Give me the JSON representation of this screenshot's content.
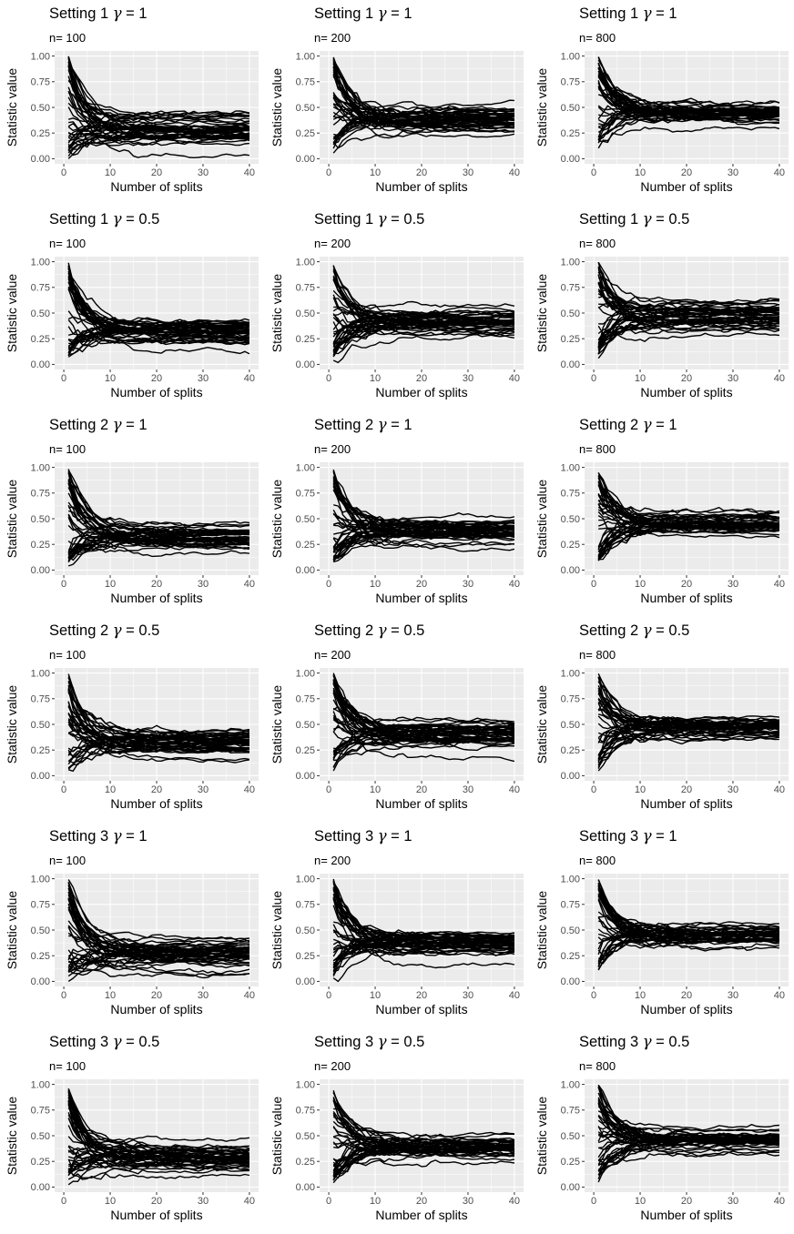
{
  "chart_data": {
    "type": "line",
    "xlabel": "Number of splits",
    "ylabel": "Statistic value",
    "xlim": [
      0,
      40
    ],
    "ylim": [
      0,
      1
    ],
    "x_ticks": [
      0,
      10,
      20,
      30,
      40
    ],
    "y_ticks": [
      0,
      0.25,
      0.5,
      0.75,
      1
    ],
    "x_tick_labels": [
      "0",
      "10",
      "20",
      "30",
      "40"
    ],
    "y_tick_labels": [
      "0.00",
      "0.25",
      "0.50",
      "0.75",
      "1.00"
    ],
    "line_color": "#000000",
    "panel_background": "#ebebeb",
    "grid_color": "#ffffff",
    "panels": [
      {
        "setting": "Setting 1",
        "gamma": "1",
        "n_label": "n= 100",
        "center": 0.3,
        "spread": 0.1,
        "low_outlier": 0.04
      },
      {
        "setting": "Setting 1",
        "gamma": "1",
        "n_label": "n= 200",
        "center": 0.4,
        "spread": 0.09,
        "low_outlier": 0.23
      },
      {
        "setting": "Setting 1",
        "gamma": "1",
        "n_label": "n= 800",
        "center": 0.45,
        "spread": 0.07,
        "low_outlier": 0.3
      },
      {
        "setting": "Setting 1",
        "gamma": "0.5",
        "n_label": "n= 100",
        "center": 0.32,
        "spread": 0.09,
        "low_outlier": 0.13
      },
      {
        "setting": "Setting 1",
        "gamma": "0.5",
        "n_label": "n= 200",
        "center": 0.42,
        "spread": 0.08,
        "low_outlier": 0.27
      },
      {
        "setting": "Setting 1",
        "gamma": "0.5",
        "n_label": "n= 800",
        "center": 0.47,
        "spread": 0.08,
        "low_outlier": 0.29
      },
      {
        "setting": "Setting 2",
        "gamma": "1",
        "n_label": "n= 100",
        "center": 0.32,
        "spread": 0.08,
        "low_outlier": 0.18
      },
      {
        "setting": "Setting 2",
        "gamma": "1",
        "n_label": "n= 200",
        "center": 0.4,
        "spread": 0.08,
        "low_outlier": 0.22
      },
      {
        "setting": "Setting 2",
        "gamma": "1",
        "n_label": "n= 800",
        "center": 0.45,
        "spread": 0.08,
        "low_outlier": 0.32
      },
      {
        "setting": "Setting 2",
        "gamma": "0.5",
        "n_label": "n= 100",
        "center": 0.33,
        "spread": 0.09,
        "low_outlier": 0.16
      },
      {
        "setting": "Setting 2",
        "gamma": "0.5",
        "n_label": "n= 200",
        "center": 0.41,
        "spread": 0.09,
        "low_outlier": 0.17
      },
      {
        "setting": "Setting 2",
        "gamma": "0.5",
        "n_label": "n= 800",
        "center": 0.47,
        "spread": 0.06,
        "low_outlier": 0.36
      },
      {
        "setting": "Setting 3",
        "gamma": "1",
        "n_label": "n= 100",
        "center": 0.27,
        "spread": 0.11,
        "low_outlier": 0.07
      },
      {
        "setting": "Setting 3",
        "gamma": "1",
        "n_label": "n= 200",
        "center": 0.38,
        "spread": 0.09,
        "low_outlier": 0.17
      },
      {
        "setting": "Setting 3",
        "gamma": "1",
        "n_label": "n= 800",
        "center": 0.45,
        "spread": 0.07,
        "low_outlier": 0.33
      },
      {
        "setting": "Setting 3",
        "gamma": "0.5",
        "n_label": "n= 100",
        "center": 0.3,
        "spread": 0.1,
        "low_outlier": 0.1
      },
      {
        "setting": "Setting 3",
        "gamma": "0.5",
        "n_label": "n= 200",
        "center": 0.39,
        "spread": 0.08,
        "low_outlier": 0.24
      },
      {
        "setting": "Setting 3",
        "gamma": "0.5",
        "n_label": "n= 800",
        "center": 0.46,
        "spread": 0.07,
        "low_outlier": 0.33
      }
    ]
  }
}
